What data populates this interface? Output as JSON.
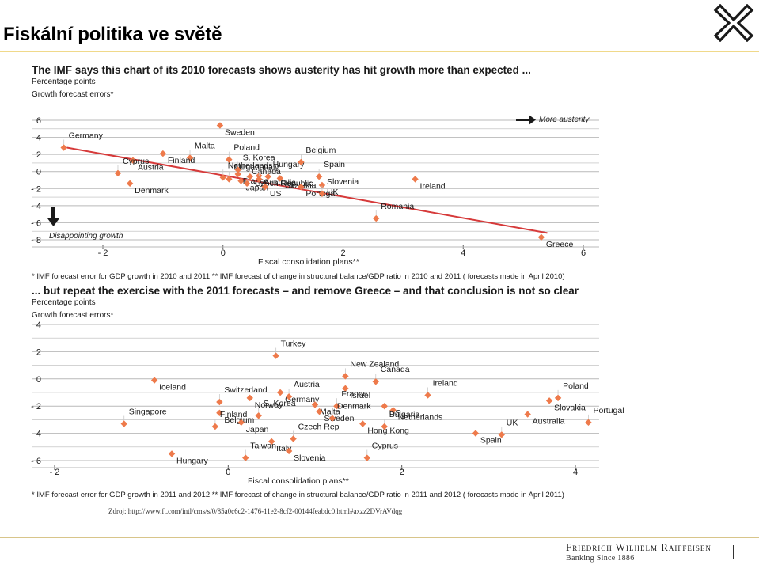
{
  "page": {
    "title": "Fiskální politika ve světě",
    "source": "Zdroj: http://www.ft.com/intl/cms/s/0/85a0c6c2-1476-11e2-8cf2-00144feabdc0.html#axzz2DVrAVdqg",
    "brand": "Friedrich Wilhelm Raiffeisen",
    "brand_sub": "Banking Since 1886"
  },
  "colors": {
    "marker": "#ee7a4b",
    "trend": "#d63a3a",
    "grid": "#b9b9b9"
  },
  "chart_data": [
    {
      "type": "scatter",
      "title": "The IMF says this chart of its 2010 forecasts shows austerity has hit growth more than expected ...",
      "units": "Percentage points",
      "ylabel": "Growth forecast errors*",
      "xlabel": "Fiscal consolidation plans**",
      "footnote": "* IMF forecast error for GDP growth in 2010 and 2011  ** IMF forecast of change in structural balance/GDP ratio in 2010 and 2011  ( forecasts made in April 2010)",
      "annotation_right": "More austerity",
      "annotation_down": "Disappointing growth",
      "xlim": [
        -2.3,
        6.1
      ],
      "ylim": [
        -8,
        6
      ],
      "xticks": [
        -2,
        0,
        2,
        4,
        6
      ],
      "yticks": [
        6,
        4,
        2,
        0,
        -2,
        -4,
        -6,
        -8
      ],
      "trendline": {
        "x": [
          -2.6,
          5.4
        ],
        "y": [
          2.8,
          -7.2
        ]
      },
      "points": [
        {
          "name": "Germany",
          "x": -2.65,
          "y": 2.8
        },
        {
          "name": "Sweden",
          "x": -0.05,
          "y": 5.4
        },
        {
          "name": "Malta",
          "x": -0.55,
          "y": 1.6
        },
        {
          "name": "Finland",
          "x": -1.0,
          "y": 2.1
        },
        {
          "name": "Poland",
          "x": 0.1,
          "y": 1.4
        },
        {
          "name": "Austria",
          "x": -1.5,
          "y": 1.3
        },
        {
          "name": "Cyprus",
          "x": -1.75,
          "y": -0.2
        },
        {
          "name": "Denmark",
          "x": -1.55,
          "y": -1.4
        },
        {
          "name": "Netherlands",
          "x": 0.0,
          "y": -0.7
        },
        {
          "name": "Japan",
          "x": 0.3,
          "y": -1.1
        },
        {
          "name": "Bulgaria",
          "x": 0.1,
          "y": -0.9
        },
        {
          "name": "France",
          "x": 0.25,
          "y": -0.3
        },
        {
          "name": "Canada",
          "x": 0.4,
          "y": -1.4
        },
        {
          "name": "Australia",
          "x": 0.6,
          "y": -0.5
        },
        {
          "name": "S. Korea",
          "x": 0.25,
          "y": 0.2
        },
        {
          "name": "Czech Republic",
          "x": 0.45,
          "y": -0.6
        },
        {
          "name": "Italy",
          "x": 0.6,
          "y": -0.9
        },
        {
          "name": "US",
          "x": 0.7,
          "y": -1.8
        },
        {
          "name": "Hungary",
          "x": 0.75,
          "y": -0.6
        },
        {
          "name": "Slovakia",
          "x": 0.95,
          "y": -0.8
        },
        {
          "name": "Belgium",
          "x": 1.3,
          "y": 1.1
        },
        {
          "name": "Portugal",
          "x": 1.3,
          "y": -1.8
        },
        {
          "name": "Spain",
          "x": 1.6,
          "y": -0.6
        },
        {
          "name": "UK",
          "x": 1.65,
          "y": -1.6
        },
        {
          "name": "Slovenia",
          "x": 1.65,
          "y": -2.6
        },
        {
          "name": "Ireland",
          "x": 3.2,
          "y": -0.9
        },
        {
          "name": "Romania",
          "x": 2.55,
          "y": -5.5
        },
        {
          "name": "Greece",
          "x": 5.3,
          "y": -7.7
        }
      ]
    },
    {
      "type": "scatter",
      "title": "... but repeat the exercise with the 2011 forecasts – and remove Greece – and that conclusion is not so clear",
      "units": "Percentage points",
      "ylabel": "Growth forecast errors*",
      "xlabel": "Fiscal consolidation plans**",
      "footnote": "* IMF forecast error for GDP growth in 2011 and 2012  ** IMF forecast of change in structural balance/GDP ratio in 2011 and 2012  ( forecasts made in April 2011)",
      "xlim": [
        -2.2,
        4.2
      ],
      "ylim": [
        -7,
        4
      ],
      "xticks": [
        -2,
        0,
        2,
        4
      ],
      "yticks": [
        4,
        2,
        0,
        -2,
        -4,
        -6
      ],
      "points": [
        {
          "name": "Turkey",
          "x": 0.55,
          "y": 1.7
        },
        {
          "name": "Iceland",
          "x": -0.85,
          "y": -0.1
        },
        {
          "name": "New Zealand",
          "x": 1.35,
          "y": 0.2
        },
        {
          "name": "Israel",
          "x": 1.35,
          "y": -0.7
        },
        {
          "name": "Canada",
          "x": 1.7,
          "y": -0.2
        },
        {
          "name": "Germany",
          "x": 0.6,
          "y": -1.0
        },
        {
          "name": "Austria",
          "x": 0.7,
          "y": -1.3
        },
        {
          "name": "Norway",
          "x": 0.25,
          "y": -1.4
        },
        {
          "name": "Switzerland",
          "x": -0.1,
          "y": -1.7
        },
        {
          "name": "Malta",
          "x": 1.0,
          "y": -1.9
        },
        {
          "name": "France",
          "x": 1.25,
          "y": -2.0
        },
        {
          "name": "US",
          "x": 1.8,
          "y": -2.0
        },
        {
          "name": "Ireland",
          "x": 2.3,
          "y": -1.2
        },
        {
          "name": "Netherlands",
          "x": 1.9,
          "y": -2.3
        },
        {
          "name": "Singapore",
          "x": -1.2,
          "y": -3.3
        },
        {
          "name": "Belgium",
          "x": -0.1,
          "y": -2.5
        },
        {
          "name": "S. Korea",
          "x": 0.35,
          "y": -2.7
        },
        {
          "name": "Japan",
          "x": 0.15,
          "y": -3.2
        },
        {
          "name": "Finland",
          "x": -0.15,
          "y": -3.5
        },
        {
          "name": "Sweden",
          "x": 1.05,
          "y": -2.4
        },
        {
          "name": "Denmark",
          "x": 1.2,
          "y": -2.9
        },
        {
          "name": "Hong Kong",
          "x": 1.55,
          "y": -3.3
        },
        {
          "name": "Bulgaria",
          "x": 1.8,
          "y": -3.5
        },
        {
          "name": "Australia",
          "x": 3.45,
          "y": -2.6
        },
        {
          "name": "Poland",
          "x": 3.8,
          "y": -1.4
        },
        {
          "name": "Slovakia",
          "x": 3.7,
          "y": -1.6
        },
        {
          "name": "Portugal",
          "x": 4.15,
          "y": -3.2
        },
        {
          "name": "Spain",
          "x": 2.85,
          "y": -4.0
        },
        {
          "name": "UK",
          "x": 3.15,
          "y": -4.1
        },
        {
          "name": "Hungary",
          "x": -0.65,
          "y": -5.5
        },
        {
          "name": "Taiwan",
          "x": 0.2,
          "y": -5.8
        },
        {
          "name": "Italy",
          "x": 0.5,
          "y": -4.6
        },
        {
          "name": "Czech Rep",
          "x": 0.75,
          "y": -4.4
        },
        {
          "name": "Slovenia",
          "x": 0.7,
          "y": -5.3
        },
        {
          "name": "Cyprus",
          "x": 1.6,
          "y": -5.8
        }
      ]
    }
  ]
}
